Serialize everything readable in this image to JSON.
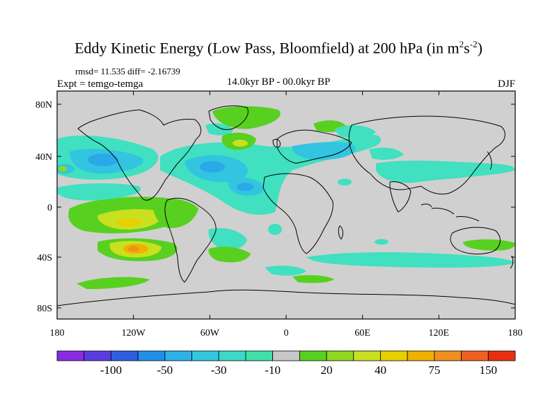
{
  "title": {
    "main": "Eddy Kinetic Energy (Low Pass, Bloomfield) at 200 hPa (in m",
    "sup1": "2",
    "mid": "s",
    "sup2": "-2",
    "end": ")"
  },
  "stats": "rmsd= 11.535 diff= -2.16739",
  "experiment": "Expt = temgo-temga",
  "period": "14.0kyr BP - 00.0kyr BP",
  "season": "DJF",
  "axes": {
    "lat_labels": [
      "80N",
      "40N",
      "0",
      "40S",
      "80S"
    ],
    "lon_labels": [
      "180",
      "120W",
      "60W",
      "0",
      "60E",
      "120E",
      "180"
    ]
  },
  "colorbar": {
    "labels": [
      "-100",
      "-50",
      "-30",
      "-10",
      "20",
      "40",
      "75",
      "150"
    ],
    "colors": [
      "#8a2be2",
      "#5a3ce0",
      "#2f5fe0",
      "#1e90e8",
      "#2eb0e8",
      "#33c8e0",
      "#3dd8c8",
      "#40e0a8",
      "#c8c8c8",
      "#58d020",
      "#90d820",
      "#c8e020",
      "#e8d000",
      "#f0b000",
      "#f09020",
      "#f06020",
      "#e83010"
    ]
  },
  "map_colors": {
    "ocean_background": "#d0d0d0",
    "coast": "#000000"
  }
}
